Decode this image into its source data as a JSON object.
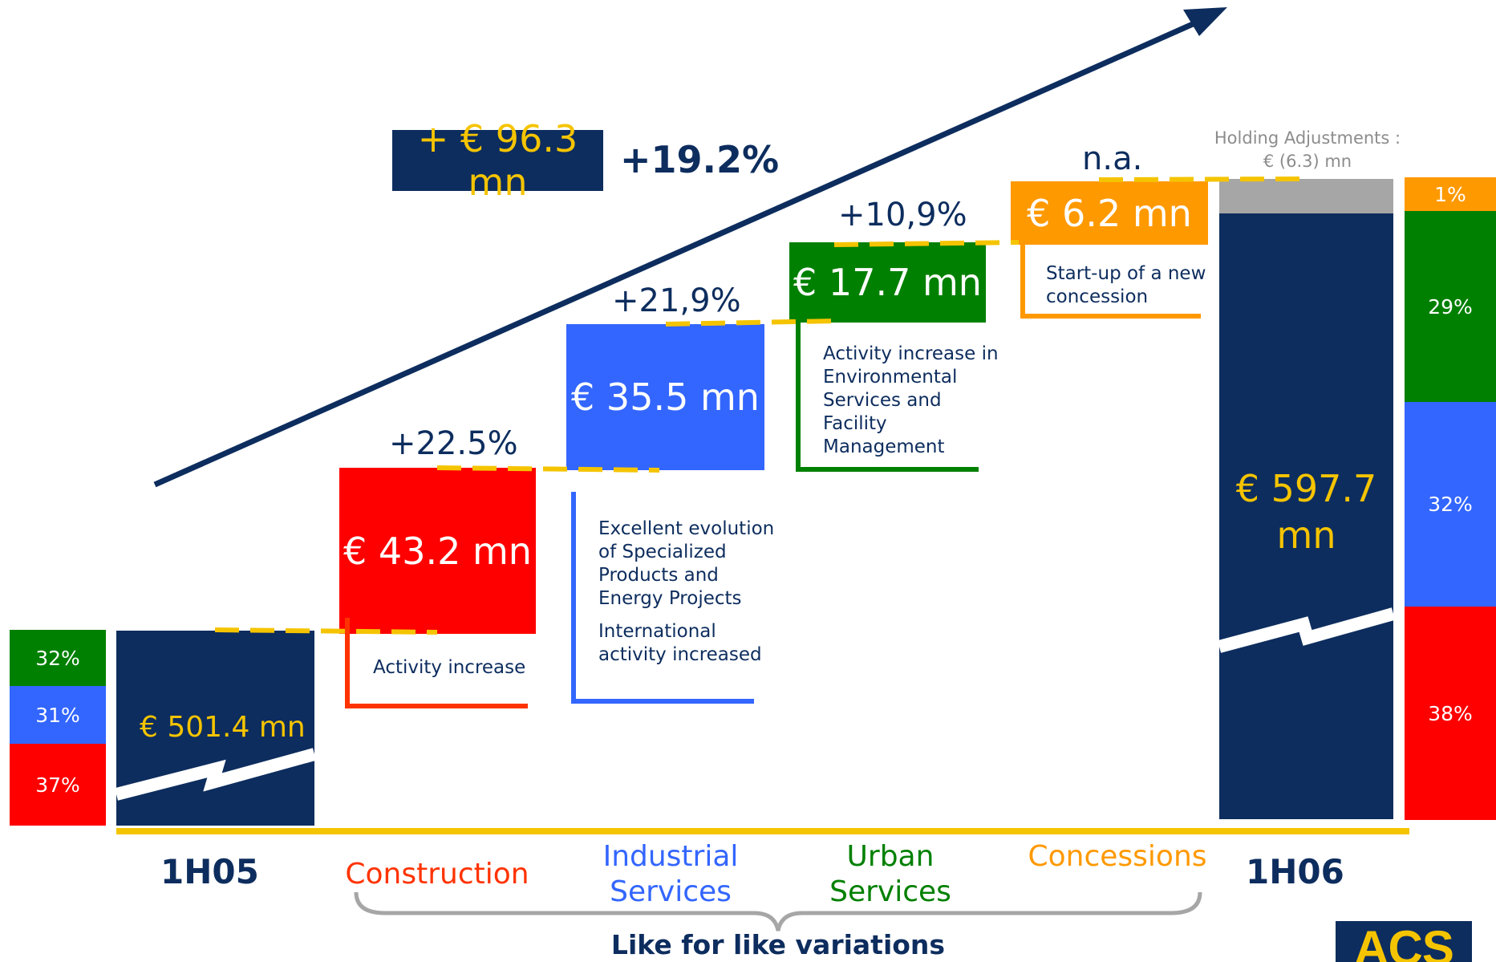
{
  "chart_data": {
    "type": "waterfall",
    "unit": "€ mn",
    "total_change": "+ € 96.3 mn",
    "total_change_pct": "+19.2%",
    "start": {
      "period": "1H05",
      "value": 501.4,
      "label": "€ 501.4 mn",
      "mix": [
        {
          "segment": "Urban Services",
          "pct": "32%",
          "color": "#008000"
        },
        {
          "segment": "Industrial Services",
          "pct": "31%",
          "color": "#3366ff"
        },
        {
          "segment": "Construction",
          "pct": "37%",
          "color": "#ff0000"
        }
      ]
    },
    "steps": [
      {
        "category": "Construction",
        "value": 43.2,
        "label": "€ 43.2 mn",
        "growth": "+22.5%",
        "color": "#ff0000",
        "notes": [
          "Activity increase"
        ]
      },
      {
        "category": "Industrial Services",
        "category_lines": [
          "Industrial",
          "Services"
        ],
        "value": 35.5,
        "label": "€ 35.5 mn",
        "growth": "+21,9%",
        "color": "#3366ff",
        "notes": [
          "Excellent evolution of Specialized Products and Energy Projects",
          "International activity increased"
        ]
      },
      {
        "category": "Urban Services",
        "category_lines": [
          "Urban",
          "Services"
        ],
        "value": 17.7,
        "label": "€ 17.7 mn",
        "growth": "+10,9%",
        "color": "#008000",
        "notes": [
          "Activity increase in Environmental Services and Facility Management"
        ]
      },
      {
        "category": "Concessions",
        "value": 6.2,
        "label": "€ 6.2 mn",
        "growth": "n.a.",
        "color": "#ff9900",
        "notes": [
          "Start-up of a new concession"
        ]
      }
    ],
    "holding_adjustments": {
      "label": "Holding Adjustments :",
      "value": -6.3,
      "value_label": "€ (6.3) mn",
      "color": "#a6a6a6"
    },
    "end": {
      "period": "1H06",
      "value": 597.7,
      "label_lines": [
        "€ 597.7",
        "mn"
      ],
      "mix": [
        {
          "segment": "Concessions",
          "pct": "1%",
          "color": "#ff9900"
        },
        {
          "segment": "Urban Services",
          "pct": "29%",
          "color": "#008000"
        },
        {
          "segment": "Industrial Services",
          "pct": "32%",
          "color": "#3366ff"
        },
        {
          "segment": "Construction",
          "pct": "38%",
          "color": "#ff0000"
        }
      ]
    },
    "group_label": "Like for like variations"
  },
  "colors": {
    "navy": "#0d2d5e",
    "gold": "#f5c400",
    "red": "#ff0000",
    "blue": "#3366ff",
    "green": "#008000",
    "orange": "#ff9900",
    "grey": "#a6a6a6"
  },
  "logo": {
    "text": "ACS"
  }
}
